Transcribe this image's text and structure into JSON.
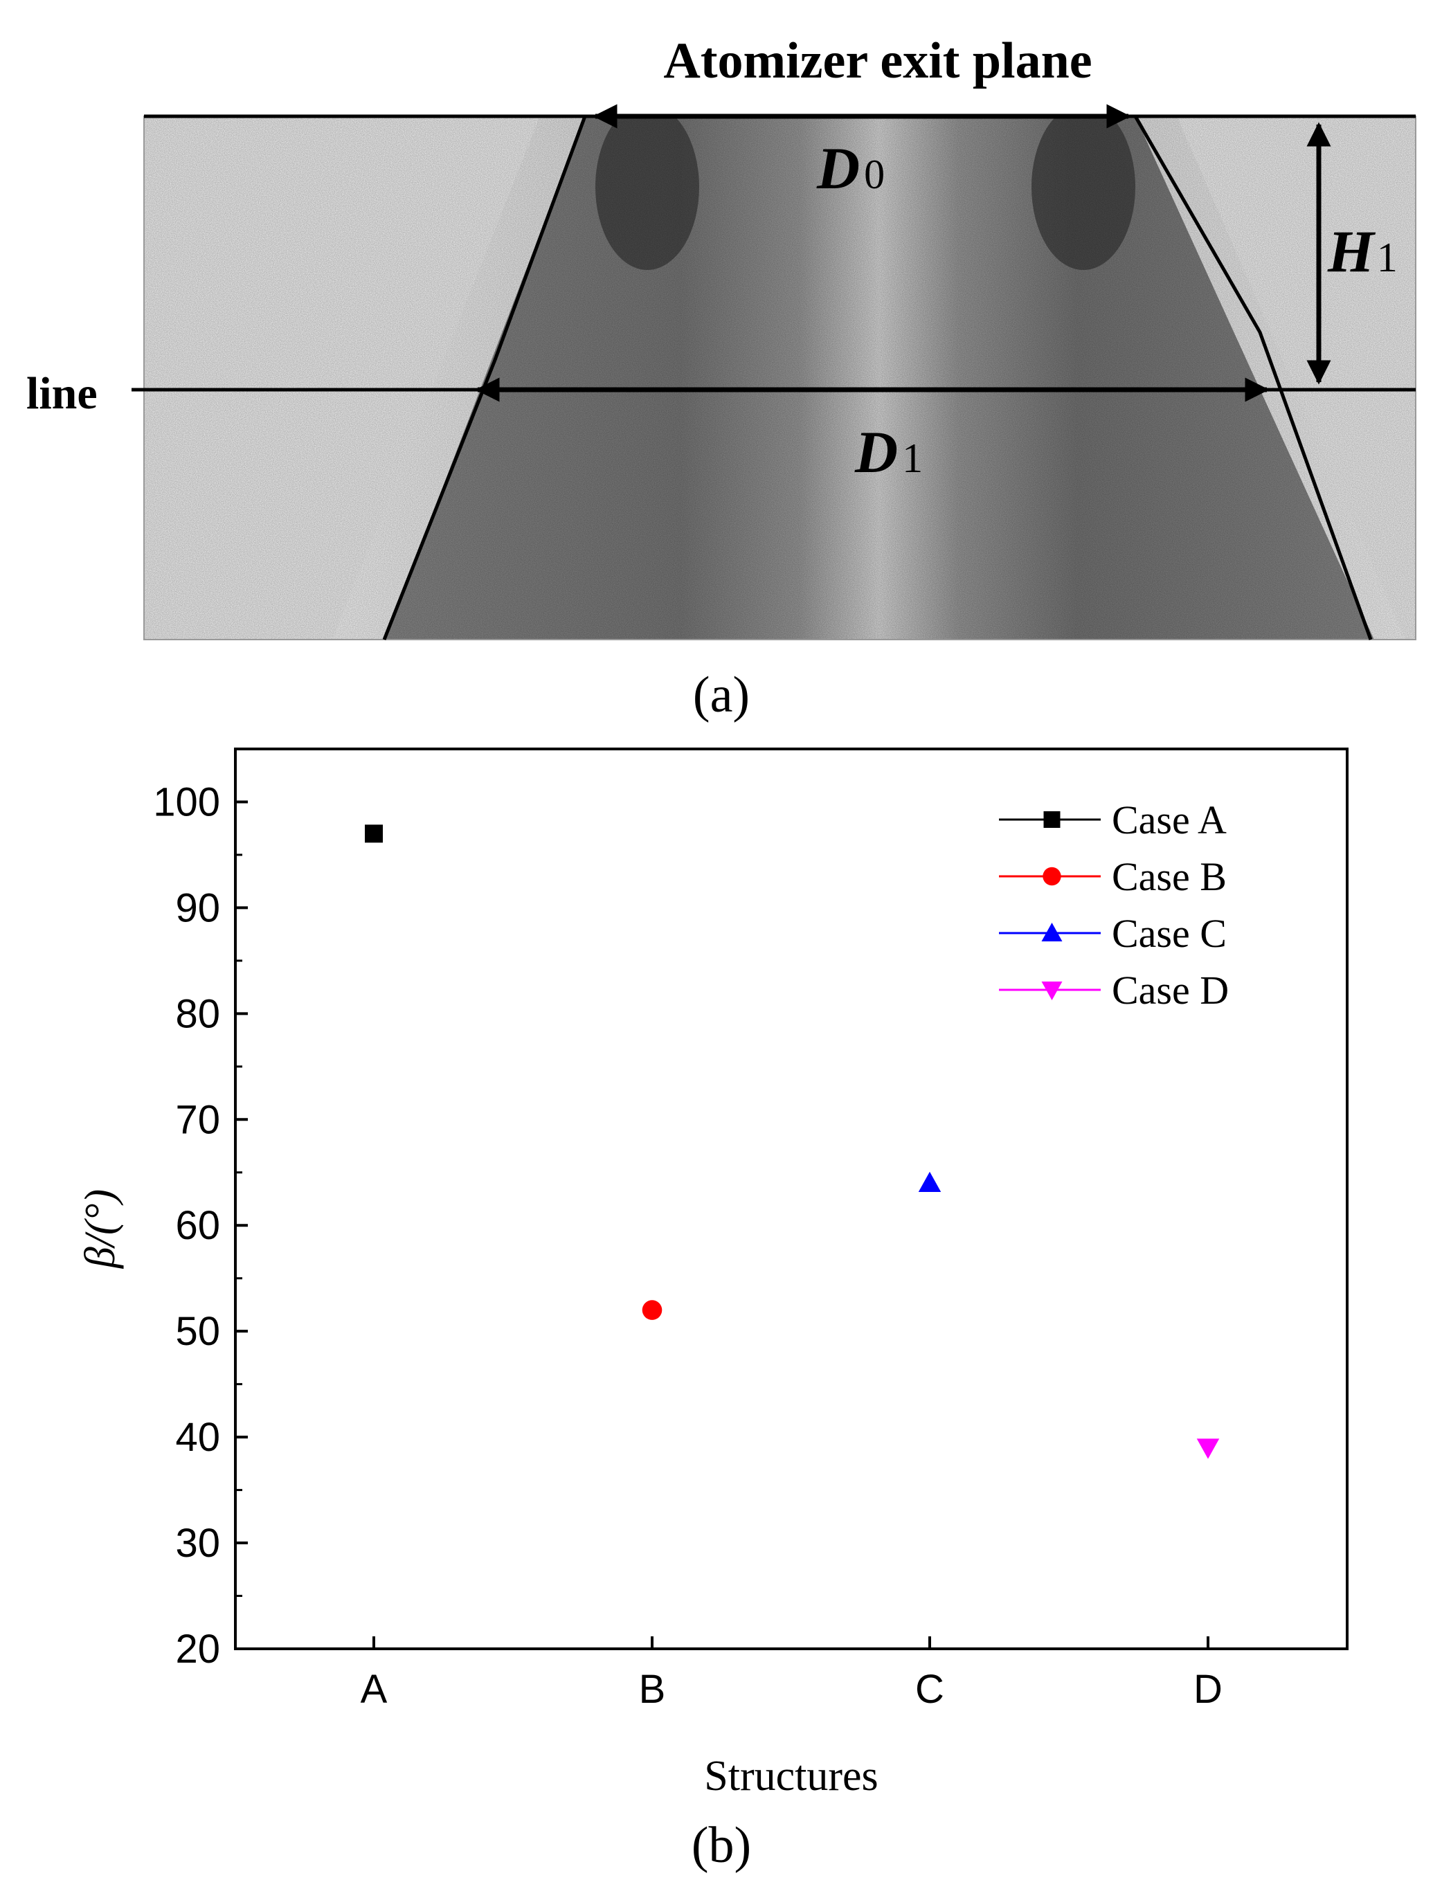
{
  "panel_a": {
    "caption": "(a)",
    "top_label": "Atomizer exit plane",
    "line_label": "line",
    "d0_label": "D",
    "d0_sub": "0",
    "d1_label": "D",
    "d1_sub": "1",
    "h1_label": "H",
    "h1_sub": "1"
  },
  "panel_b": {
    "caption": "(b)"
  },
  "chart_data": {
    "type": "scatter",
    "xlabel": "Structures",
    "ylabel": "β/(°)",
    "categories": [
      "A",
      "B",
      "C",
      "D"
    ],
    "ylim": [
      20,
      105
    ],
    "yticks": [
      20,
      30,
      40,
      50,
      60,
      70,
      80,
      90,
      100
    ],
    "grid": false,
    "legend_position": "top-right",
    "series": [
      {
        "name": "Case A",
        "category": "A",
        "value": 97,
        "color": "#000000",
        "marker": "square"
      },
      {
        "name": "Case B",
        "category": "B",
        "value": 52,
        "color": "#ff0000",
        "marker": "circle"
      },
      {
        "name": "Case C",
        "category": "C",
        "value": 64,
        "color": "#0000ff",
        "marker": "triangle-up"
      },
      {
        "name": "Case D",
        "category": "D",
        "value": 39,
        "color": "#ff00ff",
        "marker": "triangle-down"
      }
    ]
  }
}
